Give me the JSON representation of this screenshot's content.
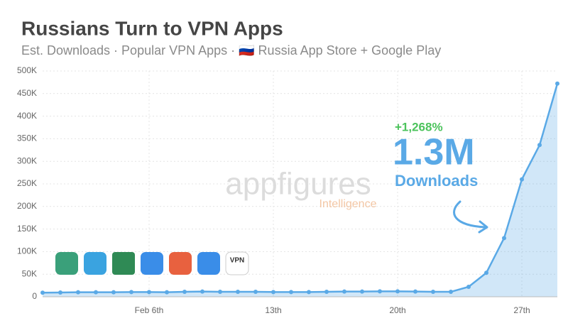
{
  "chart_data": {
    "type": "area",
    "title": "Russians Turn to VPN Apps",
    "subtitle": "Est. Downloads · Popular VPN Apps · 🇷🇺 Russia App Store + Google Play",
    "categories": [
      null,
      null,
      null,
      null,
      null,
      null,
      "Feb 6th",
      null,
      null,
      null,
      null,
      null,
      null,
      "13th",
      null,
      null,
      null,
      null,
      null,
      null,
      "20th",
      null,
      null,
      null,
      null,
      null,
      null,
      "27th",
      null,
      null
    ],
    "values": [
      9000,
      9500,
      10000,
      10000,
      10000,
      10500,
      10500,
      10000,
      11000,
      11500,
      11000,
      11000,
      11000,
      10500,
      10500,
      10500,
      11000,
      11500,
      11500,
      12000,
      12000,
      11500,
      11000,
      11000,
      22000,
      53000,
      130000,
      260000,
      336000,
      472000
    ],
    "color": "#5aa9e6",
    "ylim": [
      0,
      500000
    ],
    "yticks": [
      0,
      {
        "value": 50000,
        "label": "50K"
      },
      {
        "value": 100000,
        "label": "100K"
      },
      {
        "value": 150000,
        "label": "150K"
      },
      {
        "value": 200000,
        "label": "200K"
      },
      {
        "value": 250000,
        "label": "250K"
      },
      {
        "value": 300000,
        "label": "300K"
      },
      {
        "value": 350000,
        "label": "350K"
      },
      {
        "value": 400000,
        "label": "400K"
      },
      {
        "value": 450000,
        "label": "450K"
      },
      {
        "value": 500000,
        "label": "500K"
      }
    ],
    "grid": true,
    "annotations": {
      "change": "+1,268%",
      "total": "1.3M",
      "unit": "Downloads"
    },
    "watermark": {
      "brand": "appfigures",
      "tag": "Intelligence"
    },
    "icon_text": "VPN"
  }
}
